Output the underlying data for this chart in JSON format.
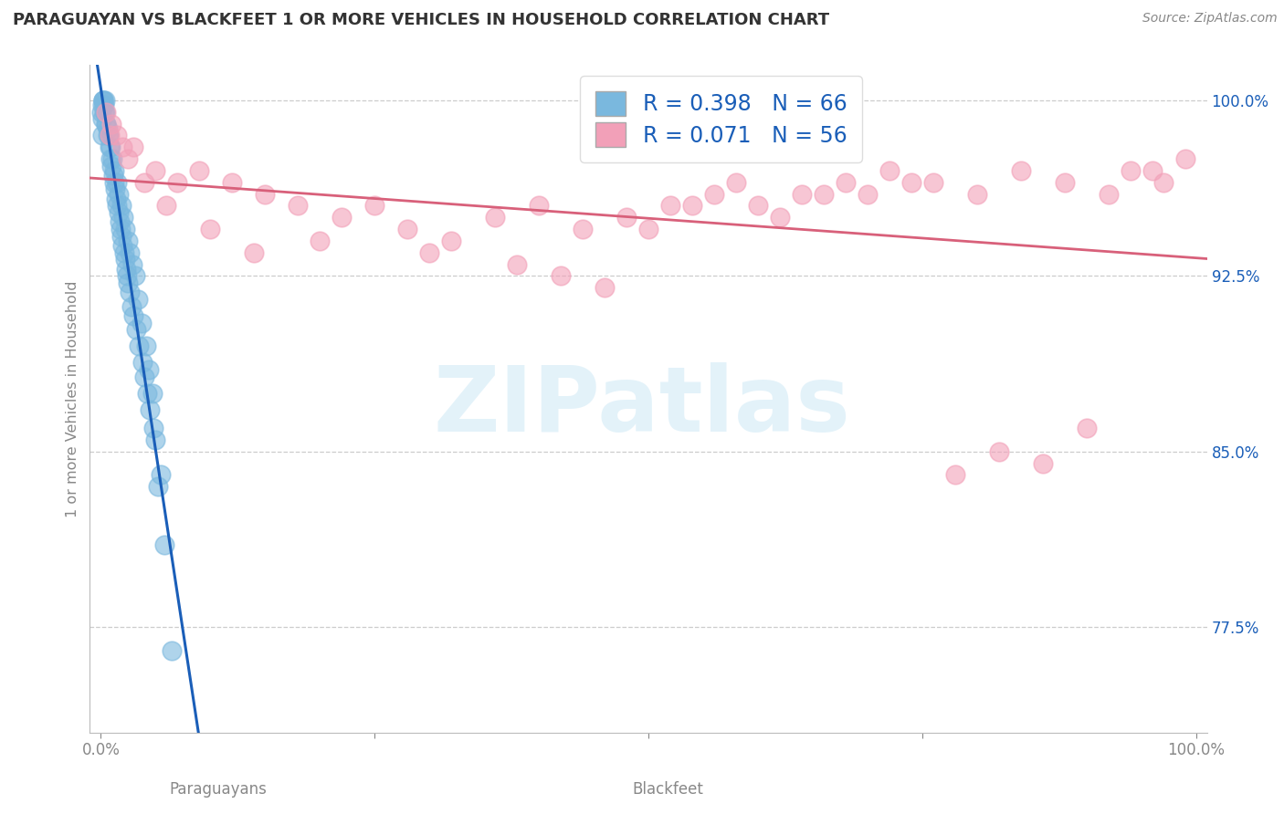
{
  "title": "PARAGUAYAN VS BLACKFEET 1 OR MORE VEHICLES IN HOUSEHOLD CORRELATION CHART",
  "source": "Source: ZipAtlas.com",
  "ylabel": "1 or more Vehicles in Household",
  "legend_label1": "Paraguayans",
  "legend_label2": "Blackfeet",
  "R1": "0.398",
  "N1": "66",
  "R2": "0.071",
  "N2": "56",
  "color_blue": "#7ab8de",
  "color_pink": "#f2a0b8",
  "color_blue_line": "#1a5eb8",
  "color_pink_line": "#d8607a",
  "color_blue_text": "#1a5eb8",
  "ymin": 73.0,
  "ymax": 101.5,
  "xmin": -1.0,
  "xmax": 101.0,
  "ytick_vals": [
    77.5,
    85.0,
    92.5,
    100.0
  ],
  "ytick_labels": [
    "77.5%",
    "85.0%",
    "92.5%",
    "100.0%"
  ],
  "xtick_vals": [
    0,
    25,
    50,
    75,
    100
  ],
  "xtick_labels": [
    "0.0%",
    "",
    "",
    "",
    "100.0%"
  ],
  "blue_x": [
    0.1,
    0.15,
    0.2,
    0.25,
    0.3,
    0.35,
    0.4,
    0.5,
    0.6,
    0.7,
    0.8,
    0.9,
    1.0,
    1.1,
    1.2,
    1.3,
    1.4,
    1.5,
    1.6,
    1.7,
    1.8,
    1.9,
    2.0,
    2.1,
    2.2,
    2.3,
    2.4,
    2.5,
    2.6,
    2.8,
    3.0,
    3.2,
    3.5,
    3.8,
    4.0,
    4.2,
    4.5,
    4.8,
    5.0,
    5.5,
    0.05,
    0.12,
    0.18,
    0.28,
    0.45,
    0.65,
    0.85,
    1.05,
    1.25,
    1.45,
    1.65,
    1.85,
    2.05,
    2.25,
    2.45,
    2.65,
    2.85,
    3.1,
    3.4,
    3.7,
    4.1,
    4.4,
    4.7,
    5.2,
    5.8,
    6.5
  ],
  "blue_y": [
    98.5,
    99.2,
    100.0,
    100.0,
    99.8,
    100.0,
    99.5,
    99.0,
    98.8,
    98.5,
    98.0,
    97.5,
    97.2,
    96.8,
    96.5,
    96.2,
    95.8,
    95.5,
    95.2,
    94.8,
    94.5,
    94.2,
    93.8,
    93.5,
    93.2,
    92.8,
    92.5,
    92.2,
    91.8,
    91.2,
    90.8,
    90.2,
    89.5,
    88.8,
    88.2,
    87.5,
    86.8,
    86.0,
    85.5,
    84.0,
    99.5,
    99.8,
    100.0,
    99.5,
    99.0,
    98.5,
    98.0,
    97.5,
    97.0,
    96.5,
    96.0,
    95.5,
    95.0,
    94.5,
    94.0,
    93.5,
    93.0,
    92.5,
    91.5,
    90.5,
    89.5,
    88.5,
    87.5,
    83.5,
    81.0,
    76.5
  ],
  "pink_x": [
    0.5,
    1.0,
    1.5,
    2.0,
    3.0,
    5.0,
    7.0,
    9.0,
    12.0,
    15.0,
    18.0,
    22.0,
    25.0,
    28.0,
    32.0,
    36.0,
    40.0,
    44.0,
    48.0,
    52.0,
    56.0,
    60.0,
    64.0,
    68.0,
    72.0,
    76.0,
    80.0,
    84.0,
    88.0,
    92.0,
    96.0,
    99.0,
    0.8,
    2.5,
    4.0,
    6.0,
    10.0,
    14.0,
    20.0,
    30.0,
    38.0,
    42.0,
    46.0,
    50.0,
    54.0,
    58.0,
    62.0,
    66.0,
    70.0,
    74.0,
    78.0,
    82.0,
    86.0,
    90.0,
    94.0,
    97.0
  ],
  "pink_y": [
    99.5,
    99.0,
    98.5,
    98.0,
    98.0,
    97.0,
    96.5,
    97.0,
    96.5,
    96.0,
    95.5,
    95.0,
    95.5,
    94.5,
    94.0,
    95.0,
    95.5,
    94.5,
    95.0,
    95.5,
    96.0,
    95.5,
    96.0,
    96.5,
    97.0,
    96.5,
    96.0,
    97.0,
    96.5,
    96.0,
    97.0,
    97.5,
    98.5,
    97.5,
    96.5,
    95.5,
    94.5,
    93.5,
    94.0,
    93.5,
    93.0,
    92.5,
    92.0,
    94.5,
    95.5,
    96.5,
    95.0,
    96.0,
    96.0,
    96.5,
    84.0,
    85.0,
    84.5,
    86.0,
    97.0,
    96.5
  ],
  "watermark_text": "ZIPatlas",
  "watermark_color": "#c8e6f5",
  "watermark_alpha": 0.5,
  "bg_color": "#ffffff",
  "grid_color": "#cccccc",
  "tick_color": "#888888",
  "title_color": "#333333",
  "source_color": "#888888",
  "spine_color": "#bbbbbb"
}
